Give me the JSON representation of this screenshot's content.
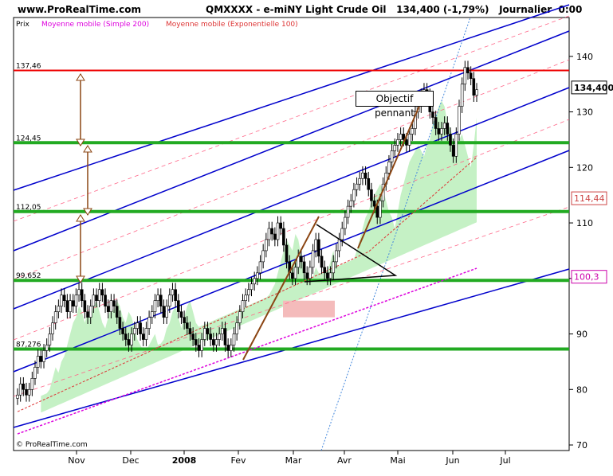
{
  "header": {
    "site": "www.ProRealTime.com",
    "symbol": "QMXXXX - e-miNY Light Crude Oil",
    "price": "134,400 (-1,79%)",
    "period": "Journalier  0:00"
  },
  "legend": {
    "prix": "Prix",
    "sma": "Moyenne mobile (Simple 200)",
    "ema": "Moyenne mobile (Exponentielle 100)"
  },
  "watermark": "© ProRealTime.com",
  "annotation": "Objectif pennant",
  "colors": {
    "up": "#000000",
    "down": "#000000",
    "channel": "#0000cc",
    "support": "#22aa22",
    "resistance": "#ee0000",
    "sma": "#dd00dd",
    "ema": "#dd3333",
    "cloud_up": "#bbeebb",
    "cloud_down": "#f4bbbb",
    "trend": "#8b4513"
  },
  "chart_data": {
    "type": "candlestick",
    "title": "QMXXXX - e-miNY Light Crude Oil",
    "ylim": [
      69,
      147
    ],
    "yticks": [
      70,
      80,
      90,
      100,
      110,
      120,
      130,
      140
    ],
    "xticks": [
      "Nov",
      "Dec",
      "2008",
      "Fev",
      "Mar",
      "Avr",
      "Mai",
      "Jun",
      "Jul"
    ],
    "levels": [
      {
        "value": 137.46,
        "label": "137,46",
        "color": "red"
      },
      {
        "value": 124.45,
        "label": "124,45",
        "color": "green"
      },
      {
        "value": 112.05,
        "label": "112,05",
        "color": "green"
      },
      {
        "value": 99.652,
        "label": "99,652",
        "color": "green"
      },
      {
        "value": 87.276,
        "label": "87,276",
        "color": "green"
      }
    ],
    "badges": [
      {
        "value": 134.4,
        "label": "134,400"
      },
      {
        "value": 114.44,
        "label": "114,44"
      },
      {
        "value": 100.3,
        "label": "100,3"
      }
    ],
    "closes": [
      79,
      81,
      80,
      79,
      80,
      82,
      84,
      86,
      85,
      87,
      88,
      90,
      92,
      94,
      95,
      97,
      96,
      94,
      96,
      95,
      97,
      98,
      96,
      94,
      93,
      95,
      97,
      96,
      98,
      97,
      95,
      94,
      96,
      95,
      93,
      91,
      90,
      89,
      88,
      90,
      91,
      92,
      90,
      89,
      91,
      93,
      94,
      96,
      97,
      95,
      93,
      95,
      97,
      98,
      96,
      94,
      93,
      92,
      91,
      90,
      89,
      88,
      87,
      89,
      91,
      90,
      89,
      88,
      89,
      90,
      91,
      88,
      87,
      88,
      90,
      92,
      94,
      96,
      97,
      98,
      99,
      100,
      101,
      103,
      105,
      107,
      109,
      108,
      107,
      110,
      109,
      106,
      103,
      101,
      100,
      102,
      104,
      103,
      101,
      100,
      102,
      105,
      107,
      104,
      102,
      101,
      100,
      101,
      103,
      105,
      107,
      109,
      111,
      113,
      114,
      116,
      117,
      118,
      119,
      118,
      116,
      114,
      113,
      111,
      114,
      117,
      119,
      121,
      123,
      124,
      125,
      126,
      125,
      124,
      126,
      127,
      130,
      131,
      133,
      134,
      133,
      130,
      129,
      127,
      126,
      127,
      128,
      126,
      124,
      122,
      126,
      131,
      135,
      138,
      137,
      136,
      133,
      134
    ]
  }
}
